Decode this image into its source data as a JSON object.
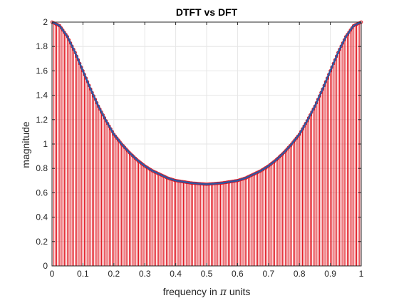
{
  "figure": {
    "background": "#ffffff",
    "axes_background": "#ffffff",
    "axis_color": "#262626",
    "grid_color": "#e6e6e6"
  },
  "chart_data": {
    "type": "line",
    "title": "DTFT vs DFT",
    "xlabel_prefix": "frequency in ",
    "xlabel_symbol": "π",
    "xlabel_suffix": " units",
    "ylabel": "magnitude",
    "xlim": [
      0,
      1
    ],
    "ylim": [
      0,
      2
    ],
    "grid": true,
    "legend": "none",
    "xticks": [
      0,
      0.1,
      0.2,
      0.3,
      0.4,
      0.5,
      0.6,
      0.7,
      0.8,
      0.9,
      1
    ],
    "xtick_labels": [
      "0",
      "0.1",
      "0.2",
      "0.3",
      "0.4",
      "0.5",
      "0.6",
      "0.7",
      "0.8",
      "0.9",
      "1"
    ],
    "yticks": [
      0,
      0.2,
      0.4,
      0.6,
      0.8,
      1,
      1.2,
      1.4,
      1.6,
      1.8,
      2
    ],
    "ytick_labels": [
      "0",
      "0.2",
      "0.4",
      "0.6",
      "0.8",
      "1",
      "1.2",
      "1.4",
      "1.6",
      "1.8",
      "2"
    ],
    "series": [
      {
        "kind": "line",
        "color": "#2e56a0",
        "x": [
          0,
          0.025,
          0.05,
          0.075,
          0.1,
          0.125,
          0.15,
          0.175,
          0.2,
          0.225,
          0.25,
          0.275,
          0.3,
          0.325,
          0.35,
          0.375,
          0.4,
          0.425,
          0.45,
          0.475,
          0.5,
          0.525,
          0.55,
          0.575,
          0.6,
          0.625,
          0.65,
          0.675,
          0.7,
          0.725,
          0.75,
          0.775,
          0.8,
          0.825,
          0.85,
          0.875,
          0.9,
          0.925,
          0.95,
          0.975,
          1
        ],
        "y": [
          2.0,
          1.97,
          1.88,
          1.75,
          1.6,
          1.45,
          1.31,
          1.19,
          1.08,
          1.0,
          0.93,
          0.87,
          0.82,
          0.78,
          0.75,
          0.72,
          0.7,
          0.69,
          0.68,
          0.675,
          0.67,
          0.675,
          0.68,
          0.69,
          0.7,
          0.72,
          0.75,
          0.78,
          0.82,
          0.87,
          0.93,
          1.0,
          1.08,
          1.19,
          1.31,
          1.45,
          1.6,
          1.75,
          1.88,
          1.97,
          2.0
        ]
      },
      {
        "kind": "stem",
        "color": "#e0101a",
        "n_samples": 201,
        "x_start": 0,
        "x_end": 1
      }
    ]
  }
}
